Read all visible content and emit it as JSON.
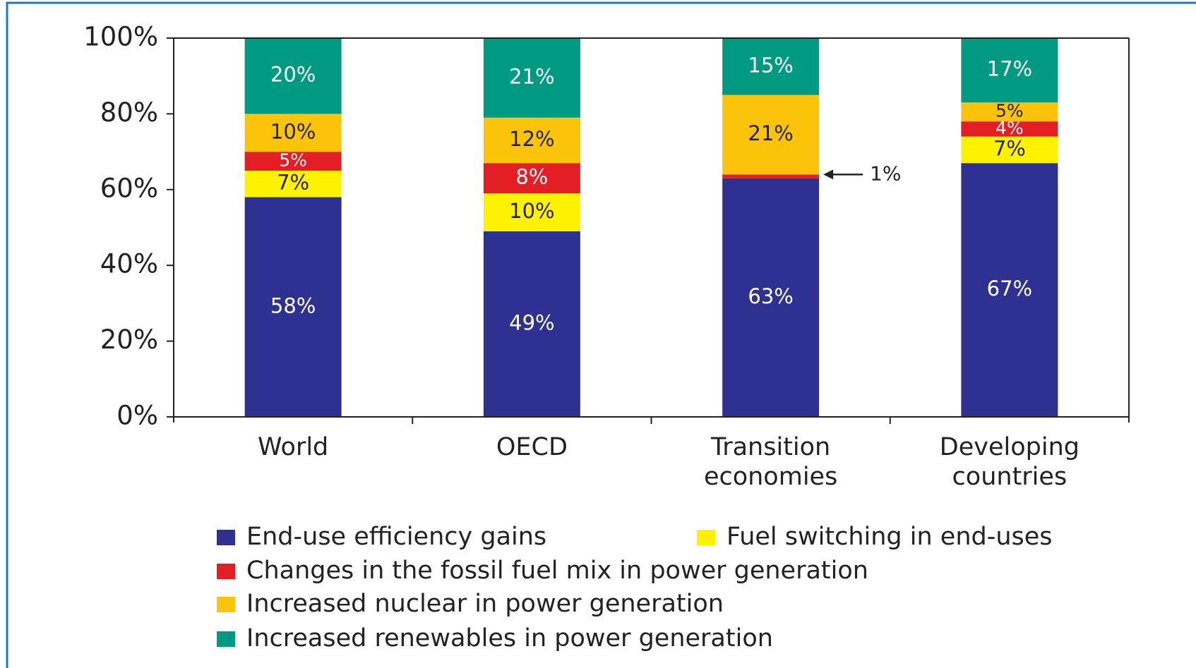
{
  "chart_data": {
    "type": "stacked_bar",
    "categories": [
      "World",
      "OECD",
      "Transition economies",
      "Developing countries"
    ],
    "series": [
      {
        "name": "End-use efficiency gains",
        "color": "#2e3192",
        "values": [
          58,
          49,
          63,
          67
        ],
        "value_labels": [
          "58%",
          "49%",
          "63%",
          "67%"
        ]
      },
      {
        "name": "Fuel switching in end-uses",
        "color": "#fff200",
        "values": [
          7,
          10,
          0,
          7
        ],
        "value_labels": [
          "7%",
          "10%",
          null,
          "7%"
        ]
      },
      {
        "name": "Changes in the fossil fuel mix in power generation",
        "color": "#e31e24",
        "values": [
          5,
          8,
          1,
          4
        ],
        "value_labels": [
          "5%",
          "8%",
          "1%",
          "4%"
        ]
      },
      {
        "name": "Increased nuclear in power generation",
        "color": "#fcc30b",
        "values": [
          10,
          12,
          21,
          5
        ],
        "value_labels": [
          "10%",
          "12%",
          "21%",
          "5%"
        ]
      },
      {
        "name": "Increased renewables in power generation",
        "color": "#009982",
        "values": [
          20,
          21,
          15,
          17
        ],
        "value_labels": [
          "20%",
          "21%",
          "15%",
          "17%"
        ]
      }
    ],
    "ylim": [
      0,
      100
    ],
    "yticks": [
      {
        "value": 0,
        "label": "0%"
      },
      {
        "value": 20,
        "label": "20%"
      },
      {
        "value": 40,
        "label": "40%"
      },
      {
        "value": 60,
        "label": "60%"
      },
      {
        "value": 80,
        "label": "80%"
      },
      {
        "value": 100,
        "label": "100%"
      }
    ]
  }
}
